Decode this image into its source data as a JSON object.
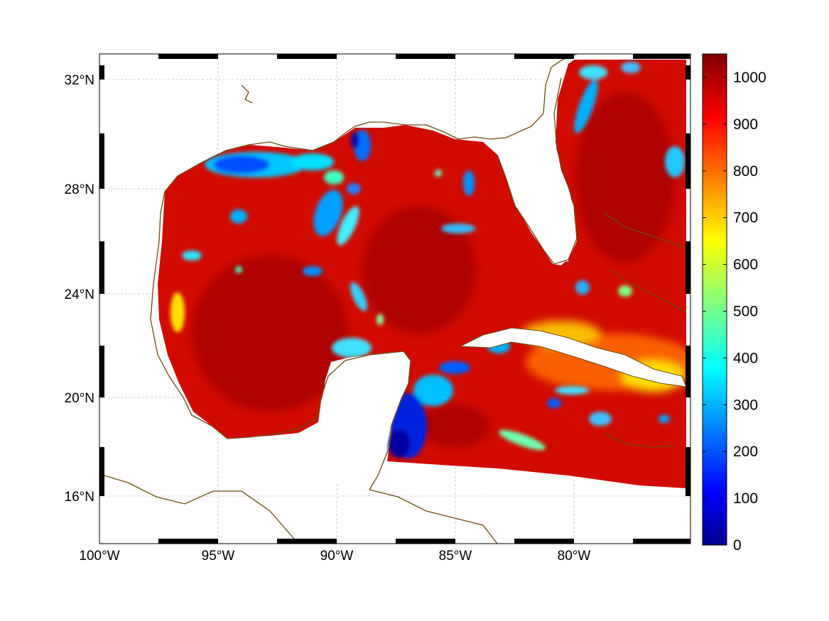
{
  "map": {
    "lon_labels": [
      "100°W",
      "95°W",
      "90°W",
      "85°W",
      "80°W"
    ],
    "lat_labels": [
      "32°N",
      "28°N",
      "24°N",
      "20°N",
      "16°N"
    ],
    "lon_range": [
      -100,
      -75
    ],
    "lat_range": [
      14.5,
      33
    ],
    "gridlines": true,
    "coastline_color": "#6b4a10",
    "land_color": "#ffffff"
  },
  "colorbar": {
    "ticks": [
      "0",
      "100",
      "200",
      "300",
      "400",
      "500",
      "600",
      "700",
      "800",
      "900",
      "1000"
    ],
    "range": [
      0,
      1050
    ],
    "colormap": "jet"
  }
}
